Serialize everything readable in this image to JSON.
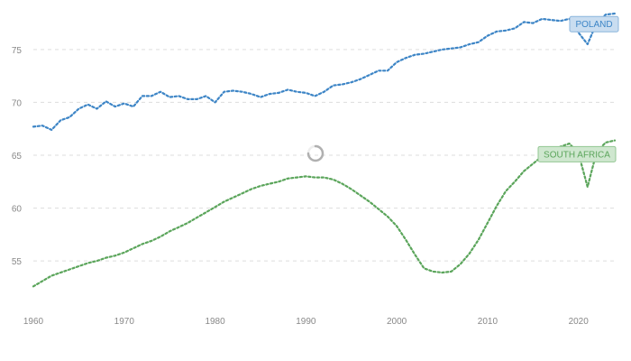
{
  "chart_data": {
    "type": "line",
    "title": "",
    "xlabel": "",
    "ylabel": "",
    "xlim": [
      1960,
      2024
    ],
    "ylim": [
      51,
      79
    ],
    "grid": true,
    "x_ticks": [
      "1960",
      "1970",
      "1980",
      "1990",
      "2000",
      "2010",
      "2020"
    ],
    "y_ticks": [
      "55",
      "60",
      "65",
      "70",
      "75"
    ],
    "series": [
      {
        "name": "POLAND",
        "color": "#3d85c6",
        "label_fill": "#c9ddf0",
        "label_stroke": "#8bb5dc",
        "x": [
          1960,
          1961,
          1962,
          1963,
          1964,
          1965,
          1966,
          1967,
          1968,
          1969,
          1970,
          1971,
          1972,
          1973,
          1974,
          1975,
          1976,
          1977,
          1978,
          1979,
          1980,
          1981,
          1982,
          1983,
          1984,
          1985,
          1986,
          1987,
          1988,
          1989,
          1990,
          1991,
          1992,
          1993,
          1994,
          1995,
          1996,
          1997,
          1998,
          1999,
          2000,
          2001,
          2002,
          2003,
          2004,
          2005,
          2006,
          2007,
          2008,
          2009,
          2010,
          2011,
          2012,
          2013,
          2014,
          2015,
          2016,
          2017,
          2018,
          2019,
          2020,
          2021,
          2022,
          2023,
          2024
        ],
        "values": [
          67.7,
          67.8,
          67.4,
          68.3,
          68.6,
          69.4,
          69.8,
          69.4,
          70.1,
          69.6,
          69.9,
          69.6,
          70.6,
          70.6,
          71.0,
          70.5,
          70.6,
          70.3,
          70.3,
          70.6,
          70.0,
          71.0,
          71.1,
          71.0,
          70.8,
          70.5,
          70.8,
          70.9,
          71.2,
          71.0,
          70.9,
          70.6,
          71.0,
          71.6,
          71.7,
          71.9,
          72.2,
          72.6,
          73.0,
          73.0,
          73.8,
          74.2,
          74.5,
          74.6,
          74.8,
          75.0,
          75.1,
          75.2,
          75.5,
          75.7,
          76.3,
          76.7,
          76.8,
          77.0,
          77.6,
          77.5,
          77.9,
          77.8,
          77.7,
          77.9,
          76.6,
          75.5,
          77.5,
          78.3,
          78.4
        ]
      },
      {
        "name": "SOUTH AFRICA",
        "color": "#5ba55b",
        "label_fill": "#cfe7cf",
        "label_stroke": "#93c793",
        "x": [
          1960,
          1961,
          1962,
          1963,
          1964,
          1965,
          1966,
          1967,
          1968,
          1969,
          1970,
          1971,
          1972,
          1973,
          1974,
          1975,
          1976,
          1977,
          1978,
          1979,
          1980,
          1981,
          1982,
          1983,
          1984,
          1985,
          1986,
          1987,
          1988,
          1989,
          1990,
          1991,
          1992,
          1993,
          1994,
          1995,
          1996,
          1997,
          1998,
          1999,
          2000,
          2001,
          2002,
          2003,
          2004,
          2005,
          2006,
          2007,
          2008,
          2009,
          2010,
          2011,
          2012,
          2013,
          2014,
          2015,
          2016,
          2017,
          2018,
          2019,
          2020,
          2021,
          2022,
          2023,
          2024
        ],
        "values": [
          52.6,
          53.1,
          53.6,
          53.9,
          54.2,
          54.5,
          54.8,
          55.0,
          55.3,
          55.5,
          55.8,
          56.2,
          56.6,
          56.9,
          57.3,
          57.8,
          58.2,
          58.6,
          59.1,
          59.6,
          60.1,
          60.6,
          61.0,
          61.4,
          61.8,
          62.1,
          62.3,
          62.5,
          62.8,
          62.9,
          63.0,
          62.9,
          62.9,
          62.7,
          62.3,
          61.8,
          61.2,
          60.6,
          59.9,
          59.2,
          58.3,
          57.0,
          55.6,
          54.3,
          54.0,
          53.9,
          54.0,
          54.7,
          55.7,
          57.0,
          58.6,
          60.2,
          61.6,
          62.5,
          63.5,
          64.2,
          64.9,
          65.4,
          65.8,
          66.1,
          65.2,
          62.0,
          65.3,
          66.2,
          66.4
        ]
      }
    ]
  }
}
